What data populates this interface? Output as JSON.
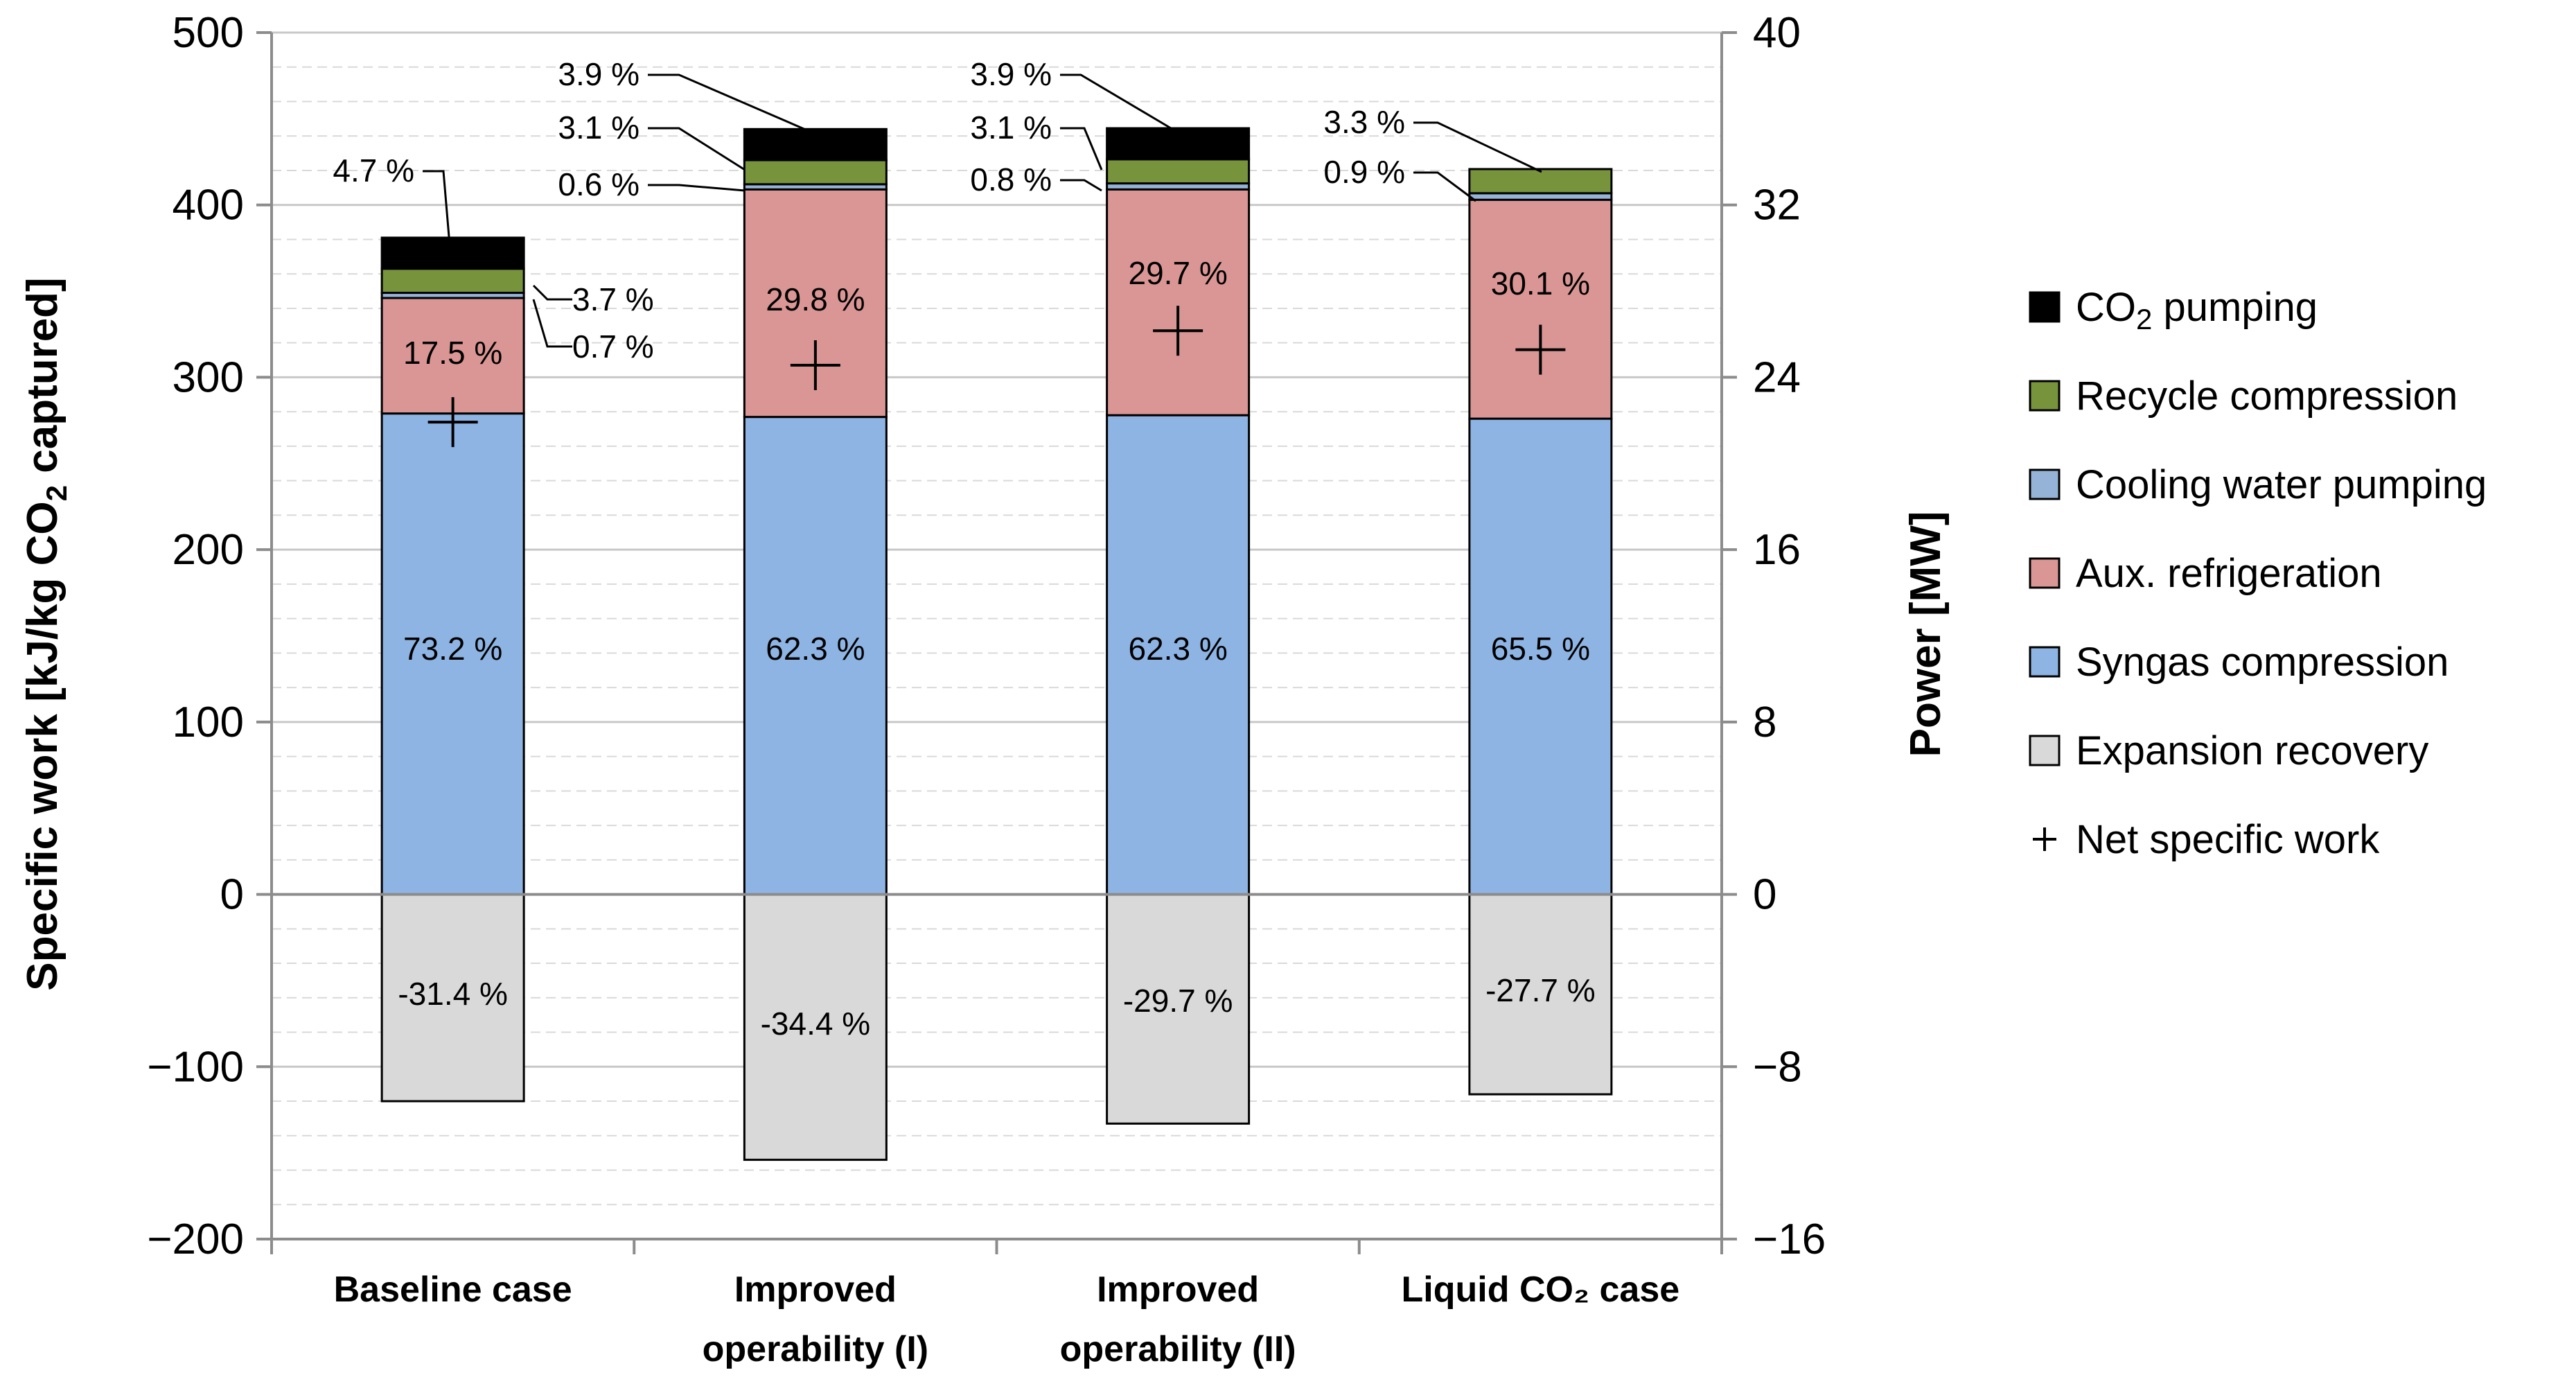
{
  "chart_data": {
    "type": "bar",
    "stacked": true,
    "categories": [
      "Baseline case",
      "Improved operability (I)",
      "Improved operability (II)",
      "Liquid CO₂ case"
    ],
    "category_lines": [
      [
        "Baseline case"
      ],
      [
        "Improved",
        "operability (I)"
      ],
      [
        "Improved",
        "operability (II)"
      ],
      [
        "Liquid CO₂ case"
      ]
    ],
    "ylabel_left": "Specific work [kJ/kg CO₂ captured]",
    "ylabel_left_main": "Specific work [kJ/kg CO",
    "ylabel_left_sub": "2",
    "ylabel_left_tail": " captured]",
    "ylabel_right": "Power [MW]",
    "ylim": [
      -200,
      500
    ],
    "yticks_left": [
      "−200",
      "−100",
      "0",
      "100",
      "200",
      "300",
      "400",
      "500"
    ],
    "ylim_right": [
      -16,
      40
    ],
    "yticks_right": [
      "−16",
      "−8",
      "0",
      "8",
      "16",
      "24",
      "32",
      "40"
    ],
    "grid": true,
    "legend_position": "right",
    "series": [
      {
        "name": "Expansion recovery",
        "color": "#d9d9d9",
        "values": [
          -120,
          -154,
          -133,
          -116
        ],
        "labels": [
          "-31.4 %",
          "-34.4 %",
          "-29.7 %",
          "-27.7 %"
        ]
      },
      {
        "name": "Syngas compression",
        "color": "#8db4e3",
        "values": [
          279,
          277,
          278,
          276
        ],
        "labels": [
          "73.2 %",
          "62.3 %",
          "62.3 %",
          "65.5 %"
        ]
      },
      {
        "name": "Aux. refrigeration",
        "color": "#da9694",
        "values": [
          67,
          132,
          131,
          127
        ],
        "labels": [
          "17.5 %",
          "29.8 %",
          "29.7 %",
          "30.1 %"
        ]
      },
      {
        "name": "Cooling water pumping",
        "color": "#95b3d7",
        "values": [
          3,
          3,
          3.5,
          3.8
        ],
        "labels": [
          "0.7 %",
          "0.6 %",
          "0.8 %",
          "0.9 %"
        ]
      },
      {
        "name": "Recycle compression",
        "color": "#77933c",
        "values": [
          14,
          14,
          14,
          14
        ],
        "labels": [
          "3.7 %",
          "3.1 %",
          "3.1 %",
          "3.3 %"
        ]
      },
      {
        "name": "CO₂ pumping",
        "color": "#000000",
        "values": [
          18,
          18,
          18,
          0
        ],
        "labels": [
          "4.7 %",
          "3.9 %",
          "3.9 %",
          ""
        ]
      }
    ],
    "net_specific_work": {
      "name": "Net specific work",
      "marker": "+",
      "values": [
        274,
        307,
        327,
        316
      ]
    },
    "legend": [
      {
        "name": "CO₂ pumping",
        "main": "CO",
        "sub": "2",
        "tail": " pumping",
        "color": "#000000",
        "marker": "box"
      },
      {
        "name": "Recycle compression",
        "main": "Recycle compression",
        "color": "#77933c",
        "marker": "box"
      },
      {
        "name": "Cooling water pumping",
        "main": "Cooling water pumping",
        "color": "#95b3d7",
        "marker": "box"
      },
      {
        "name": "Aux. refrigeration",
        "main": "Aux. refrigeration",
        "color": "#da9694",
        "marker": "box"
      },
      {
        "name": "Syngas compression",
        "main": "Syngas compression",
        "color": "#8db4e3",
        "marker": "box"
      },
      {
        "name": "Expansion recovery",
        "main": "Expansion recovery",
        "color": "#d9d9d9",
        "marker": "box"
      },
      {
        "name": "Net specific work",
        "main": "Net specific work",
        "color": "#000000",
        "marker": "plus"
      }
    ]
  }
}
